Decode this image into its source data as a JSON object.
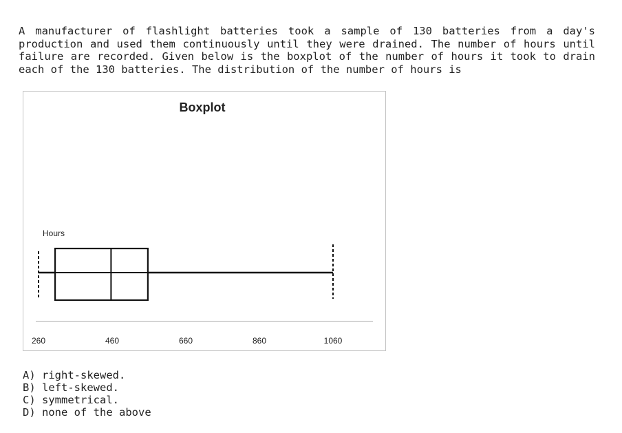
{
  "question": {
    "text": "A manufacturer of flashlight batteries took a sample of 130 batteries from a day's production and used them continuously until they were drained. The number of hours until failure are recorded. Given below is the boxplot of the number of hours it took to drain each of the 130 batteries. The distribution of the number of hours is"
  },
  "chart_data": {
    "type": "boxplot",
    "title": "Boxplot",
    "variable_label": "Hours",
    "xlim": [
      260,
      1060
    ],
    "ticks": [
      260,
      460,
      660,
      860,
      1060
    ],
    "tick_labels": [
      "260",
      "460",
      "660",
      "860",
      "1060"
    ],
    "box": {
      "min": 260,
      "q1": 305,
      "median": 457,
      "q3": 557,
      "max": 1060
    }
  },
  "options": [
    {
      "letter": "A)",
      "text": "right-skewed."
    },
    {
      "letter": "B)",
      "text": "left-skewed."
    },
    {
      "letter": "C)",
      "text": "symmetrical."
    },
    {
      "letter": "D)",
      "text": "none of the above"
    }
  ]
}
